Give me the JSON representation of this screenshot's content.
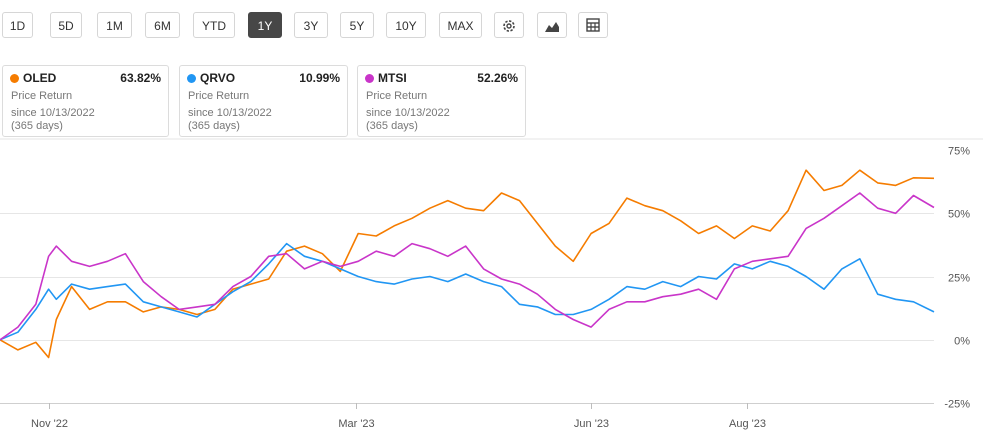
{
  "toolbar": {
    "ranges": [
      "1D",
      "5D",
      "1M",
      "6M",
      "YTD",
      "1Y",
      "3Y",
      "5Y",
      "10Y",
      "MAX"
    ],
    "active_range": "1Y",
    "icons": [
      "gear-icon",
      "mountain-chart-icon",
      "table-icon"
    ]
  },
  "cards": [
    {
      "ticker": "OLED",
      "value": "63.82%",
      "label": "Price Return",
      "since": "since 10/13/2022",
      "days": "(365 days)",
      "color": "#f57c00"
    },
    {
      "ticker": "QRVO",
      "value": "10.99%",
      "label": "Price Return",
      "since": "since 10/13/2022",
      "days": "(365 days)",
      "color": "#2196f3"
    },
    {
      "ticker": "MTSI",
      "value": "52.26%",
      "label": "Price Return",
      "since": "since 10/13/2022",
      "days": "(365 days)",
      "color": "#c935c9"
    }
  ],
  "chart_data": {
    "type": "line",
    "ylim": [
      -25,
      75
    ],
    "yticks": [
      "75%",
      "50%",
      "25%",
      "0%",
      "-25%"
    ],
    "ytick_values": [
      75,
      50,
      25,
      0,
      -25
    ],
    "xticks": [
      "Nov '22",
      "Mar '23",
      "Jun '23",
      "Aug '23"
    ],
    "xtick_dates": [
      "2022-11-01",
      "2023-03-01",
      "2023-06-01",
      "2023-08-01"
    ],
    "x_range": [
      "2022-10-13",
      "2023-10-13"
    ],
    "grid": true,
    "series": [
      {
        "name": "OLED",
        "color": "#f57c00",
        "points": [
          [
            "2022-10-13",
            0
          ],
          [
            "2022-10-20",
            -4
          ],
          [
            "2022-10-27",
            -1
          ],
          [
            "2022-11-01",
            -7
          ],
          [
            "2022-11-04",
            8
          ],
          [
            "2022-11-10",
            21
          ],
          [
            "2022-11-17",
            12
          ],
          [
            "2022-11-24",
            15
          ],
          [
            "2022-12-01",
            15
          ],
          [
            "2022-12-08",
            11
          ],
          [
            "2022-12-15",
            13
          ],
          [
            "2022-12-22",
            12
          ],
          [
            "2022-12-29",
            10
          ],
          [
            "2023-01-05",
            12
          ],
          [
            "2023-01-12",
            20
          ],
          [
            "2023-01-19",
            22
          ],
          [
            "2023-01-26",
            24
          ],
          [
            "2023-02-02",
            35
          ],
          [
            "2023-02-09",
            37
          ],
          [
            "2023-02-16",
            34
          ],
          [
            "2023-02-23",
            27
          ],
          [
            "2023-03-02",
            42
          ],
          [
            "2023-03-09",
            41
          ],
          [
            "2023-03-16",
            45
          ],
          [
            "2023-03-23",
            48
          ],
          [
            "2023-03-30",
            52
          ],
          [
            "2023-04-06",
            55
          ],
          [
            "2023-04-13",
            52
          ],
          [
            "2023-04-20",
            51
          ],
          [
            "2023-04-27",
            58
          ],
          [
            "2023-05-04",
            55
          ],
          [
            "2023-05-11",
            46
          ],
          [
            "2023-05-18",
            37
          ],
          [
            "2023-05-25",
            31
          ],
          [
            "2023-06-01",
            42
          ],
          [
            "2023-06-08",
            46
          ],
          [
            "2023-06-15",
            56
          ],
          [
            "2023-06-22",
            53
          ],
          [
            "2023-06-29",
            51
          ],
          [
            "2023-07-06",
            47
          ],
          [
            "2023-07-13",
            42
          ],
          [
            "2023-07-20",
            45
          ],
          [
            "2023-07-27",
            40
          ],
          [
            "2023-08-03",
            45
          ],
          [
            "2023-08-10",
            43
          ],
          [
            "2023-08-17",
            51
          ],
          [
            "2023-08-24",
            67
          ],
          [
            "2023-08-31",
            59
          ],
          [
            "2023-09-07",
            61
          ],
          [
            "2023-09-14",
            67
          ],
          [
            "2023-09-21",
            62
          ],
          [
            "2023-09-28",
            61
          ],
          [
            "2023-10-05",
            64
          ],
          [
            "2023-10-13",
            63.82
          ]
        ]
      },
      {
        "name": "QRVO",
        "color": "#2196f3",
        "points": [
          [
            "2022-10-13",
            0
          ],
          [
            "2022-10-20",
            3
          ],
          [
            "2022-10-27",
            12
          ],
          [
            "2022-11-01",
            20
          ],
          [
            "2022-11-04",
            16
          ],
          [
            "2022-11-10",
            22
          ],
          [
            "2022-11-17",
            20
          ],
          [
            "2022-11-24",
            21
          ],
          [
            "2022-12-01",
            22
          ],
          [
            "2022-12-08",
            15
          ],
          [
            "2022-12-15",
            13
          ],
          [
            "2022-12-22",
            11
          ],
          [
            "2022-12-29",
            9
          ],
          [
            "2023-01-05",
            14
          ],
          [
            "2023-01-12",
            19
          ],
          [
            "2023-01-19",
            23
          ],
          [
            "2023-01-26",
            30
          ],
          [
            "2023-02-02",
            38
          ],
          [
            "2023-02-09",
            33
          ],
          [
            "2023-02-16",
            31
          ],
          [
            "2023-02-23",
            28
          ],
          [
            "2023-03-02",
            25
          ],
          [
            "2023-03-09",
            23
          ],
          [
            "2023-03-16",
            22
          ],
          [
            "2023-03-23",
            24
          ],
          [
            "2023-03-30",
            25
          ],
          [
            "2023-04-06",
            23
          ],
          [
            "2023-04-13",
            26
          ],
          [
            "2023-04-20",
            23
          ],
          [
            "2023-04-27",
            21
          ],
          [
            "2023-05-04",
            14
          ],
          [
            "2023-05-11",
            13
          ],
          [
            "2023-05-18",
            10
          ],
          [
            "2023-05-25",
            10
          ],
          [
            "2023-06-01",
            12
          ],
          [
            "2023-06-08",
            16
          ],
          [
            "2023-06-15",
            21
          ],
          [
            "2023-06-22",
            20
          ],
          [
            "2023-06-29",
            23
          ],
          [
            "2023-07-06",
            21
          ],
          [
            "2023-07-13",
            25
          ],
          [
            "2023-07-20",
            24
          ],
          [
            "2023-07-27",
            30
          ],
          [
            "2023-08-03",
            28
          ],
          [
            "2023-08-10",
            31
          ],
          [
            "2023-08-17",
            29
          ],
          [
            "2023-08-24",
            25
          ],
          [
            "2023-08-31",
            20
          ],
          [
            "2023-09-07",
            28
          ],
          [
            "2023-09-14",
            32
          ],
          [
            "2023-09-21",
            18
          ],
          [
            "2023-09-28",
            16
          ],
          [
            "2023-10-05",
            15
          ],
          [
            "2023-10-13",
            10.99
          ]
        ]
      },
      {
        "name": "MTSI",
        "color": "#c935c9",
        "points": [
          [
            "2022-10-13",
            0
          ],
          [
            "2022-10-20",
            5
          ],
          [
            "2022-10-27",
            14
          ],
          [
            "2022-11-01",
            33
          ],
          [
            "2022-11-04",
            37
          ],
          [
            "2022-11-10",
            31
          ],
          [
            "2022-11-17",
            29
          ],
          [
            "2022-11-24",
            31
          ],
          [
            "2022-12-01",
            34
          ],
          [
            "2022-12-08",
            23
          ],
          [
            "2022-12-15",
            17
          ],
          [
            "2022-12-22",
            12
          ],
          [
            "2022-12-29",
            13
          ],
          [
            "2023-01-05",
            14
          ],
          [
            "2023-01-12",
            21
          ],
          [
            "2023-01-19",
            25
          ],
          [
            "2023-01-26",
            33
          ],
          [
            "2023-02-02",
            34
          ],
          [
            "2023-02-09",
            28
          ],
          [
            "2023-02-16",
            31
          ],
          [
            "2023-02-23",
            29
          ],
          [
            "2023-03-02",
            31
          ],
          [
            "2023-03-09",
            35
          ],
          [
            "2023-03-16",
            33
          ],
          [
            "2023-03-23",
            38
          ],
          [
            "2023-03-30",
            36
          ],
          [
            "2023-04-06",
            33
          ],
          [
            "2023-04-13",
            37
          ],
          [
            "2023-04-20",
            28
          ],
          [
            "2023-04-27",
            24
          ],
          [
            "2023-05-04",
            22
          ],
          [
            "2023-05-11",
            18
          ],
          [
            "2023-05-18",
            12
          ],
          [
            "2023-05-25",
            8
          ],
          [
            "2023-06-01",
            5
          ],
          [
            "2023-06-08",
            12
          ],
          [
            "2023-06-15",
            15
          ],
          [
            "2023-06-22",
            15
          ],
          [
            "2023-06-29",
            17
          ],
          [
            "2023-07-06",
            18
          ],
          [
            "2023-07-13",
            20
          ],
          [
            "2023-07-20",
            16
          ],
          [
            "2023-07-27",
            28
          ],
          [
            "2023-08-03",
            31
          ],
          [
            "2023-08-10",
            32
          ],
          [
            "2023-08-17",
            33
          ],
          [
            "2023-08-24",
            44
          ],
          [
            "2023-08-31",
            48
          ],
          [
            "2023-09-07",
            53
          ],
          [
            "2023-09-14",
            58
          ],
          [
            "2023-09-21",
            52
          ],
          [
            "2023-09-28",
            50
          ],
          [
            "2023-10-05",
            57
          ],
          [
            "2023-10-13",
            52.26
          ]
        ]
      }
    ]
  }
}
